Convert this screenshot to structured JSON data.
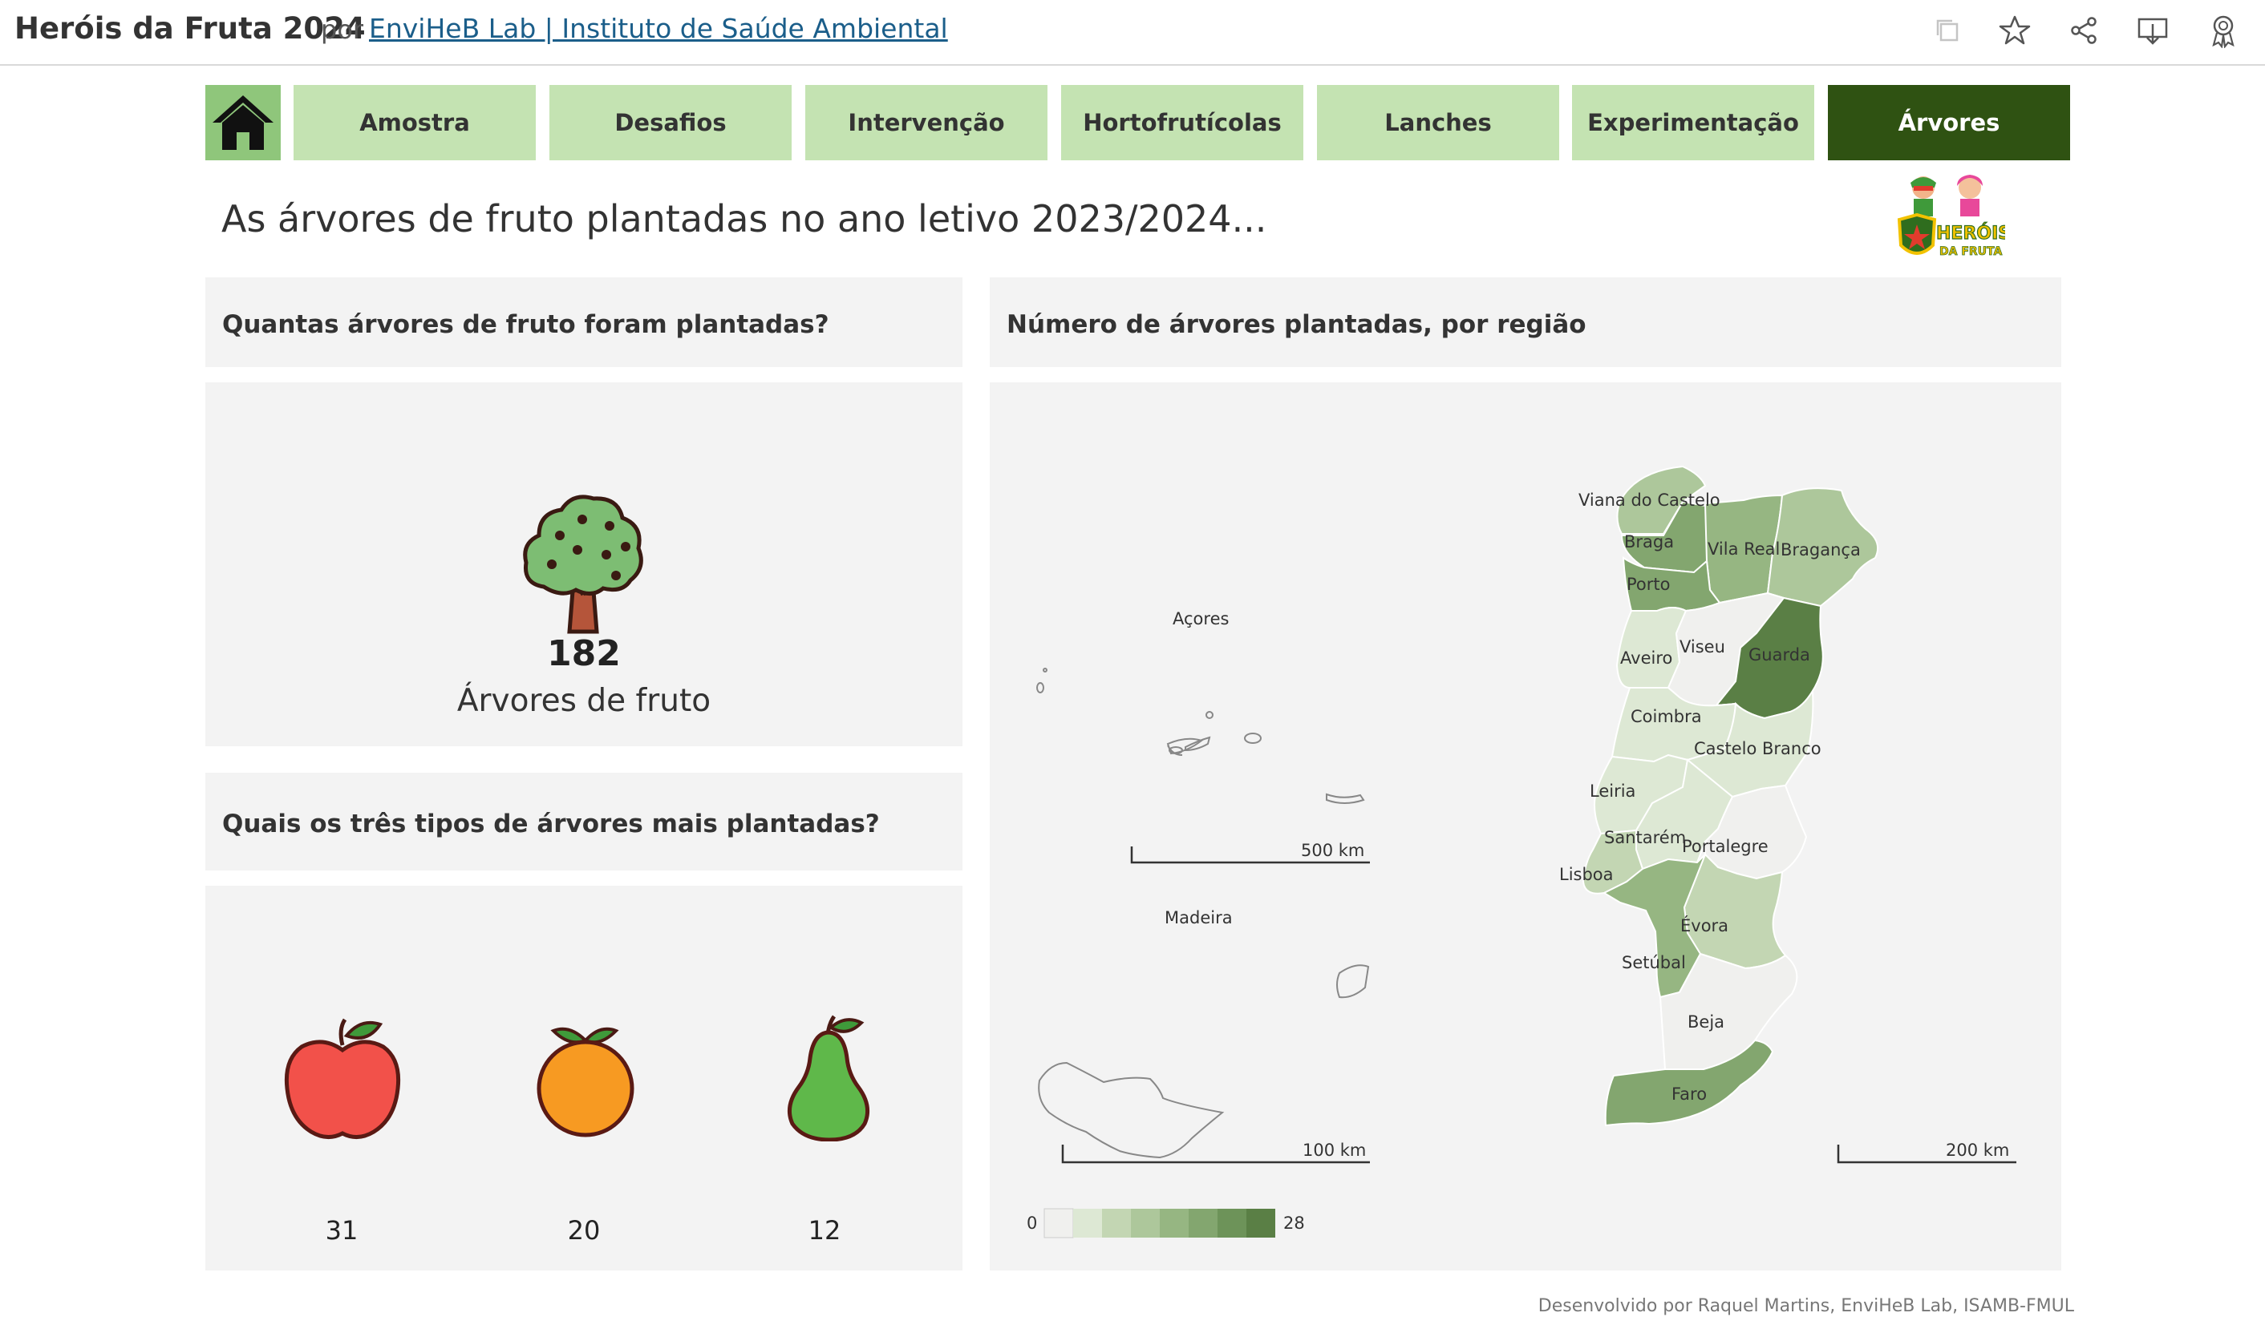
{
  "header": {
    "title": "Heróis da Fruta 2024",
    "by": "por",
    "author": "EnviHeB Lab | Instituto de Saúde Ambiental",
    "icons": [
      "copy-icon",
      "star-icon",
      "share-icon",
      "download-icon",
      "badge-icon"
    ]
  },
  "nav": {
    "home_icon": "house-icon",
    "tabs": [
      "Amostra",
      "Desafios",
      "Intervenção",
      "Hortofrutícolas",
      "Lanches",
      "Experimentação",
      "Árvores"
    ],
    "active": "Árvores"
  },
  "page_title": "As árvores de fruto plantadas no ano letivo 2023/2024...",
  "logo_text": "HERÓIS DA FRUTA",
  "kpi": {
    "question": "Quantas árvores de fruto foram plantadas?",
    "value": "182",
    "label": "Árvores de fruto",
    "icon": "tree-icon"
  },
  "top_trees": {
    "question": "Quais os três tipos de árvores mais plantadas?",
    "items": [
      {
        "icon": "apple-icon",
        "value": "31"
      },
      {
        "icon": "orange-icon",
        "value": "20"
      },
      {
        "icon": "pear-icon",
        "value": "12"
      }
    ]
  },
  "map": {
    "title": "Número de árvores plantadas, por região",
    "islands": {
      "azores": "Açores",
      "madeira": "Madeira"
    },
    "districts": [
      "Viana do Castelo",
      "Braga",
      "Vila Real",
      "Bragança",
      "Porto",
      "Aveiro",
      "Viseu",
      "Guarda",
      "Coimbra",
      "Castelo Branco",
      "Leiria",
      "Santarém",
      "Portalegre",
      "Lisboa",
      "Évora",
      "Setúbal",
      "Beja",
      "Faro"
    ],
    "scales": {
      "azores": "500 km",
      "madeira": "100 km",
      "mainland": "200 km"
    },
    "legend": {
      "min": "0",
      "max": "28"
    },
    "colors": [
      "#f0f0ee",
      "#dde8d4",
      "#c3d6b3",
      "#adc79b",
      "#96b682",
      "#83a66f",
      "#6d9359",
      "#5a7f45"
    ]
  },
  "footer": "Desenvolvido por Raquel Martins, EnviHeB Lab, ISAMB-FMUL"
}
